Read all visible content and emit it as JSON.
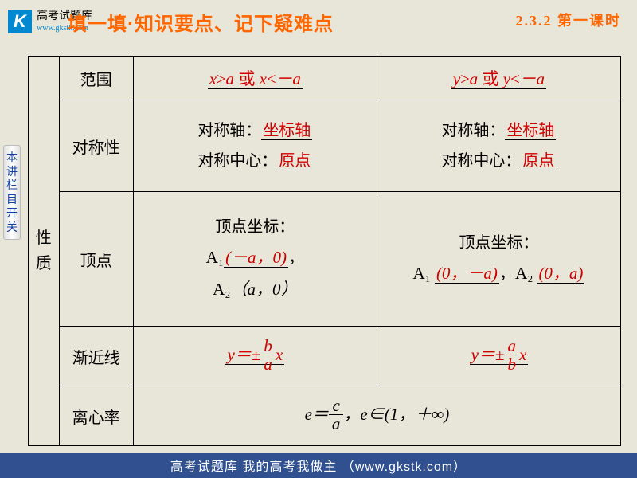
{
  "header": {
    "logo_letter": "K",
    "logo_cn": "高考试题库",
    "logo_url": "www.gkstk.com",
    "title_prefix": "填一填·",
    "title_main": "知识要点、记下疑难点",
    "pager": "2.3.2  第一课时"
  },
  "sidebar": {
    "label": "本讲栏目开关"
  },
  "table": {
    "group_label": "性质",
    "rows": {
      "range": {
        "label": "范围",
        "col1": {
          "a": "x≥a",
          "or": "或",
          "b": "x≤－a"
        },
        "col2": {
          "a": "y≥a",
          "or": "或",
          "b": "y≤－a"
        }
      },
      "symmetry": {
        "label": "对称性",
        "axis_label": "对称轴：",
        "axis_val": "坐标轴",
        "center_label": "对称中心：",
        "center_val": "原点"
      },
      "vertex": {
        "label": "顶点",
        "heading": "顶点坐标：",
        "col1": {
          "a1_pre": "A₁",
          "a1_val": "(－a，0)",
          "comma": "，",
          "a2_pre": "A₂",
          "a2_val": "（a，0）"
        },
        "col2": {
          "a1_pre": "A₁",
          "a1_val": "(0，－a)",
          "sep": "，",
          "a2_pre": "A₂",
          "a2_val": "(0，a)"
        }
      },
      "asymptote": {
        "label": "渐近线",
        "col1": {
          "lhs": "y＝±",
          "num": "b",
          "den": "a",
          "rhs": "x"
        },
        "col2": {
          "lhs": "y＝±",
          "num": "a",
          "den": "b",
          "rhs": "x"
        }
      },
      "eccentricity": {
        "label": "离心率",
        "lhs": "e＝",
        "num": "c",
        "den": "a",
        "tail": "，e∈(1，＋∞)"
      }
    }
  },
  "footer": {
    "text": "高考试题库  我的高考我做主  （www.gkstk.com）"
  },
  "colors": {
    "bg": "#e8e6d8",
    "accent": "#ff6600",
    "red": "#d00000",
    "footer_bg": "#305090",
    "logo_bg": "#0089d1",
    "border": "#000000"
  }
}
